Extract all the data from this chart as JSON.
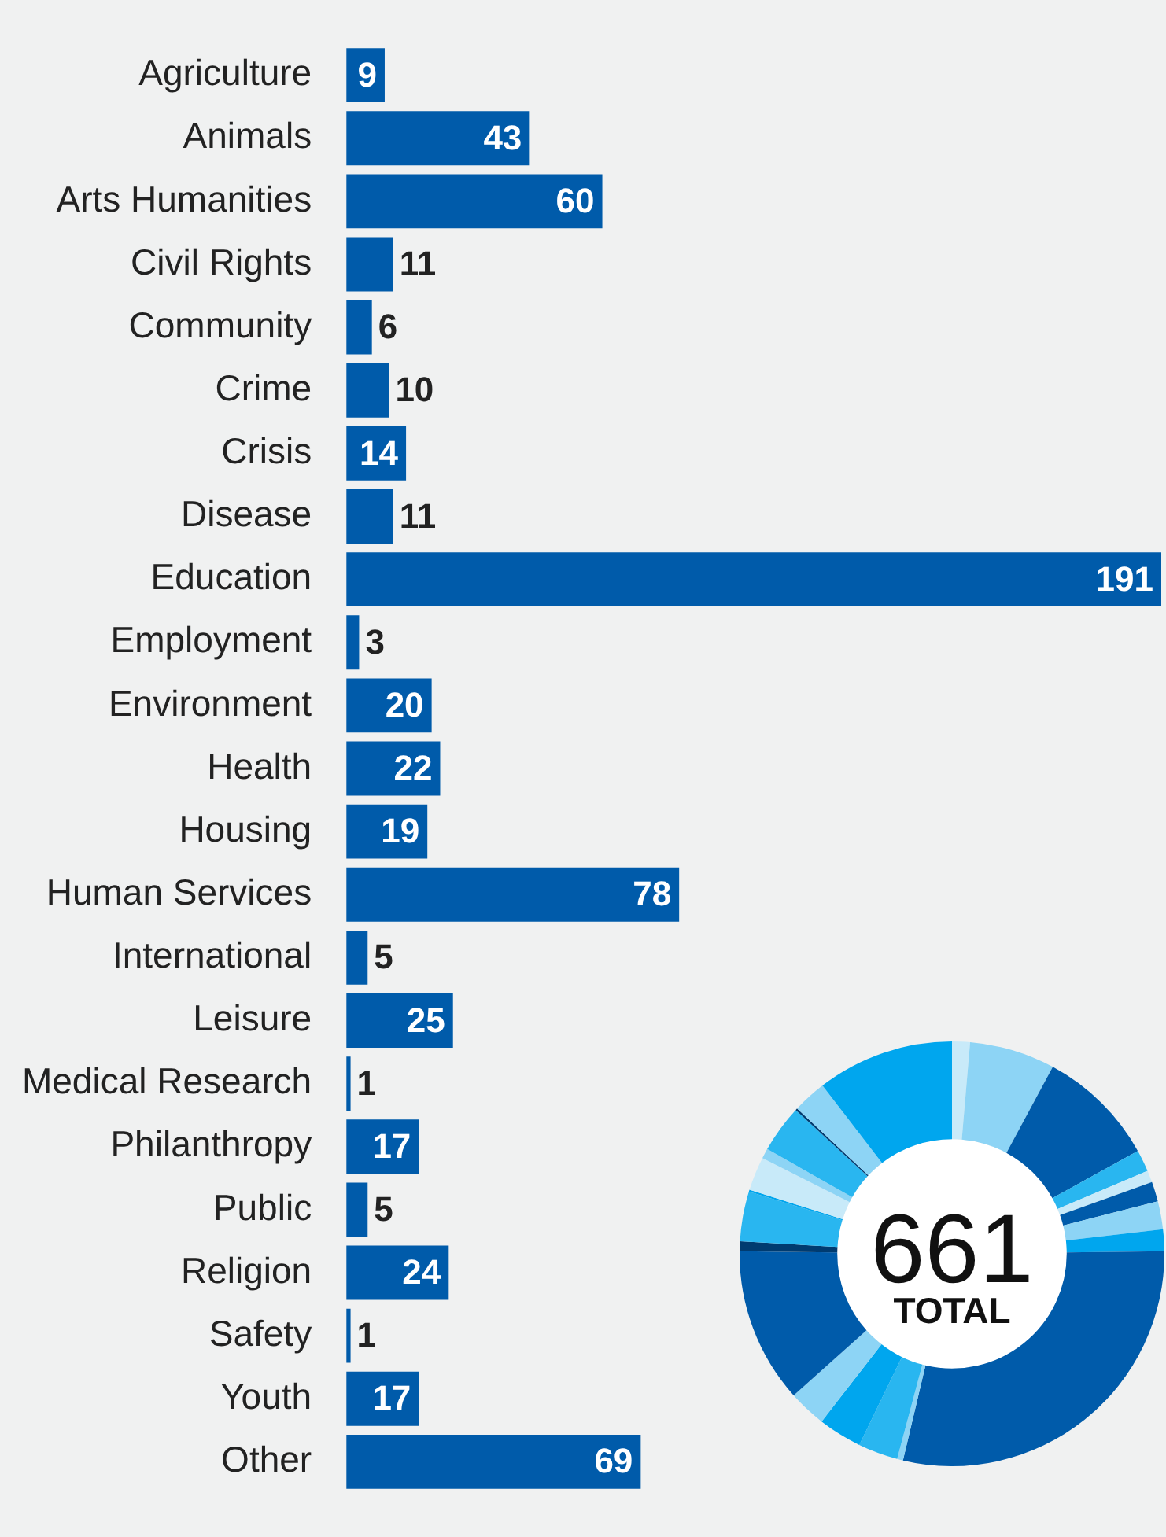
{
  "chart_data": [
    {
      "type": "bar",
      "orientation": "horizontal",
      "categories": [
        "Agriculture",
        "Animals",
        "Arts Humanities",
        "Civil Rights",
        "Community",
        "Crime",
        "Crisis",
        "Disease",
        "Education",
        "Employment",
        "Environment",
        "Health",
        "Housing",
        "Human Services",
        "International",
        "Leisure",
        "Medical Research",
        "Philanthropy",
        "Public",
        "Religion",
        "Safety",
        "Youth",
        "Other"
      ],
      "values": [
        9,
        43,
        60,
        11,
        6,
        10,
        14,
        11,
        191,
        3,
        20,
        22,
        19,
        78,
        5,
        25,
        1,
        17,
        5,
        24,
        1,
        17,
        69
      ],
      "color": "#005baa",
      "data_labels": true,
      "legend": false
    },
    {
      "type": "donut",
      "categories": [
        null,
        null,
        null,
        null,
        null,
        null,
        null,
        null,
        null,
        null,
        null,
        null,
        null,
        null,
        null,
        null,
        null,
        null,
        null,
        null,
        null,
        null,
        null
      ],
      "values": [
        1.36,
        6.51,
        9.08,
        1.66,
        0.91,
        1.51,
        2.12,
        1.66,
        28.9,
        0.45,
        3.03,
        3.33,
        2.87,
        11.8,
        0.76,
        3.78,
        0.15,
        2.57,
        0.76,
        3.63,
        0.15,
        2.57,
        10.44
      ],
      "colors": [
        "#c8eaf9",
        "#8dd4f5",
        "#005baa",
        "#29b6f0",
        "#c8eaf9",
        "#005baa",
        "#8dd4f5",
        "#00a6ee",
        "#005baa",
        "#8dd4f5",
        "#29b6f0",
        "#00a6ee",
        "#8dd4f5",
        "#005baa",
        "#003b70",
        "#29b6f0",
        "#00a6ee",
        "#c8eaf9",
        "#8dd4f5",
        "#29b6f0",
        "#003b70",
        "#8dd4f5",
        "#00a6ee"
      ],
      "annotations": [
        "661",
        "TOTAL"
      ],
      "legend": false
    }
  ]
}
